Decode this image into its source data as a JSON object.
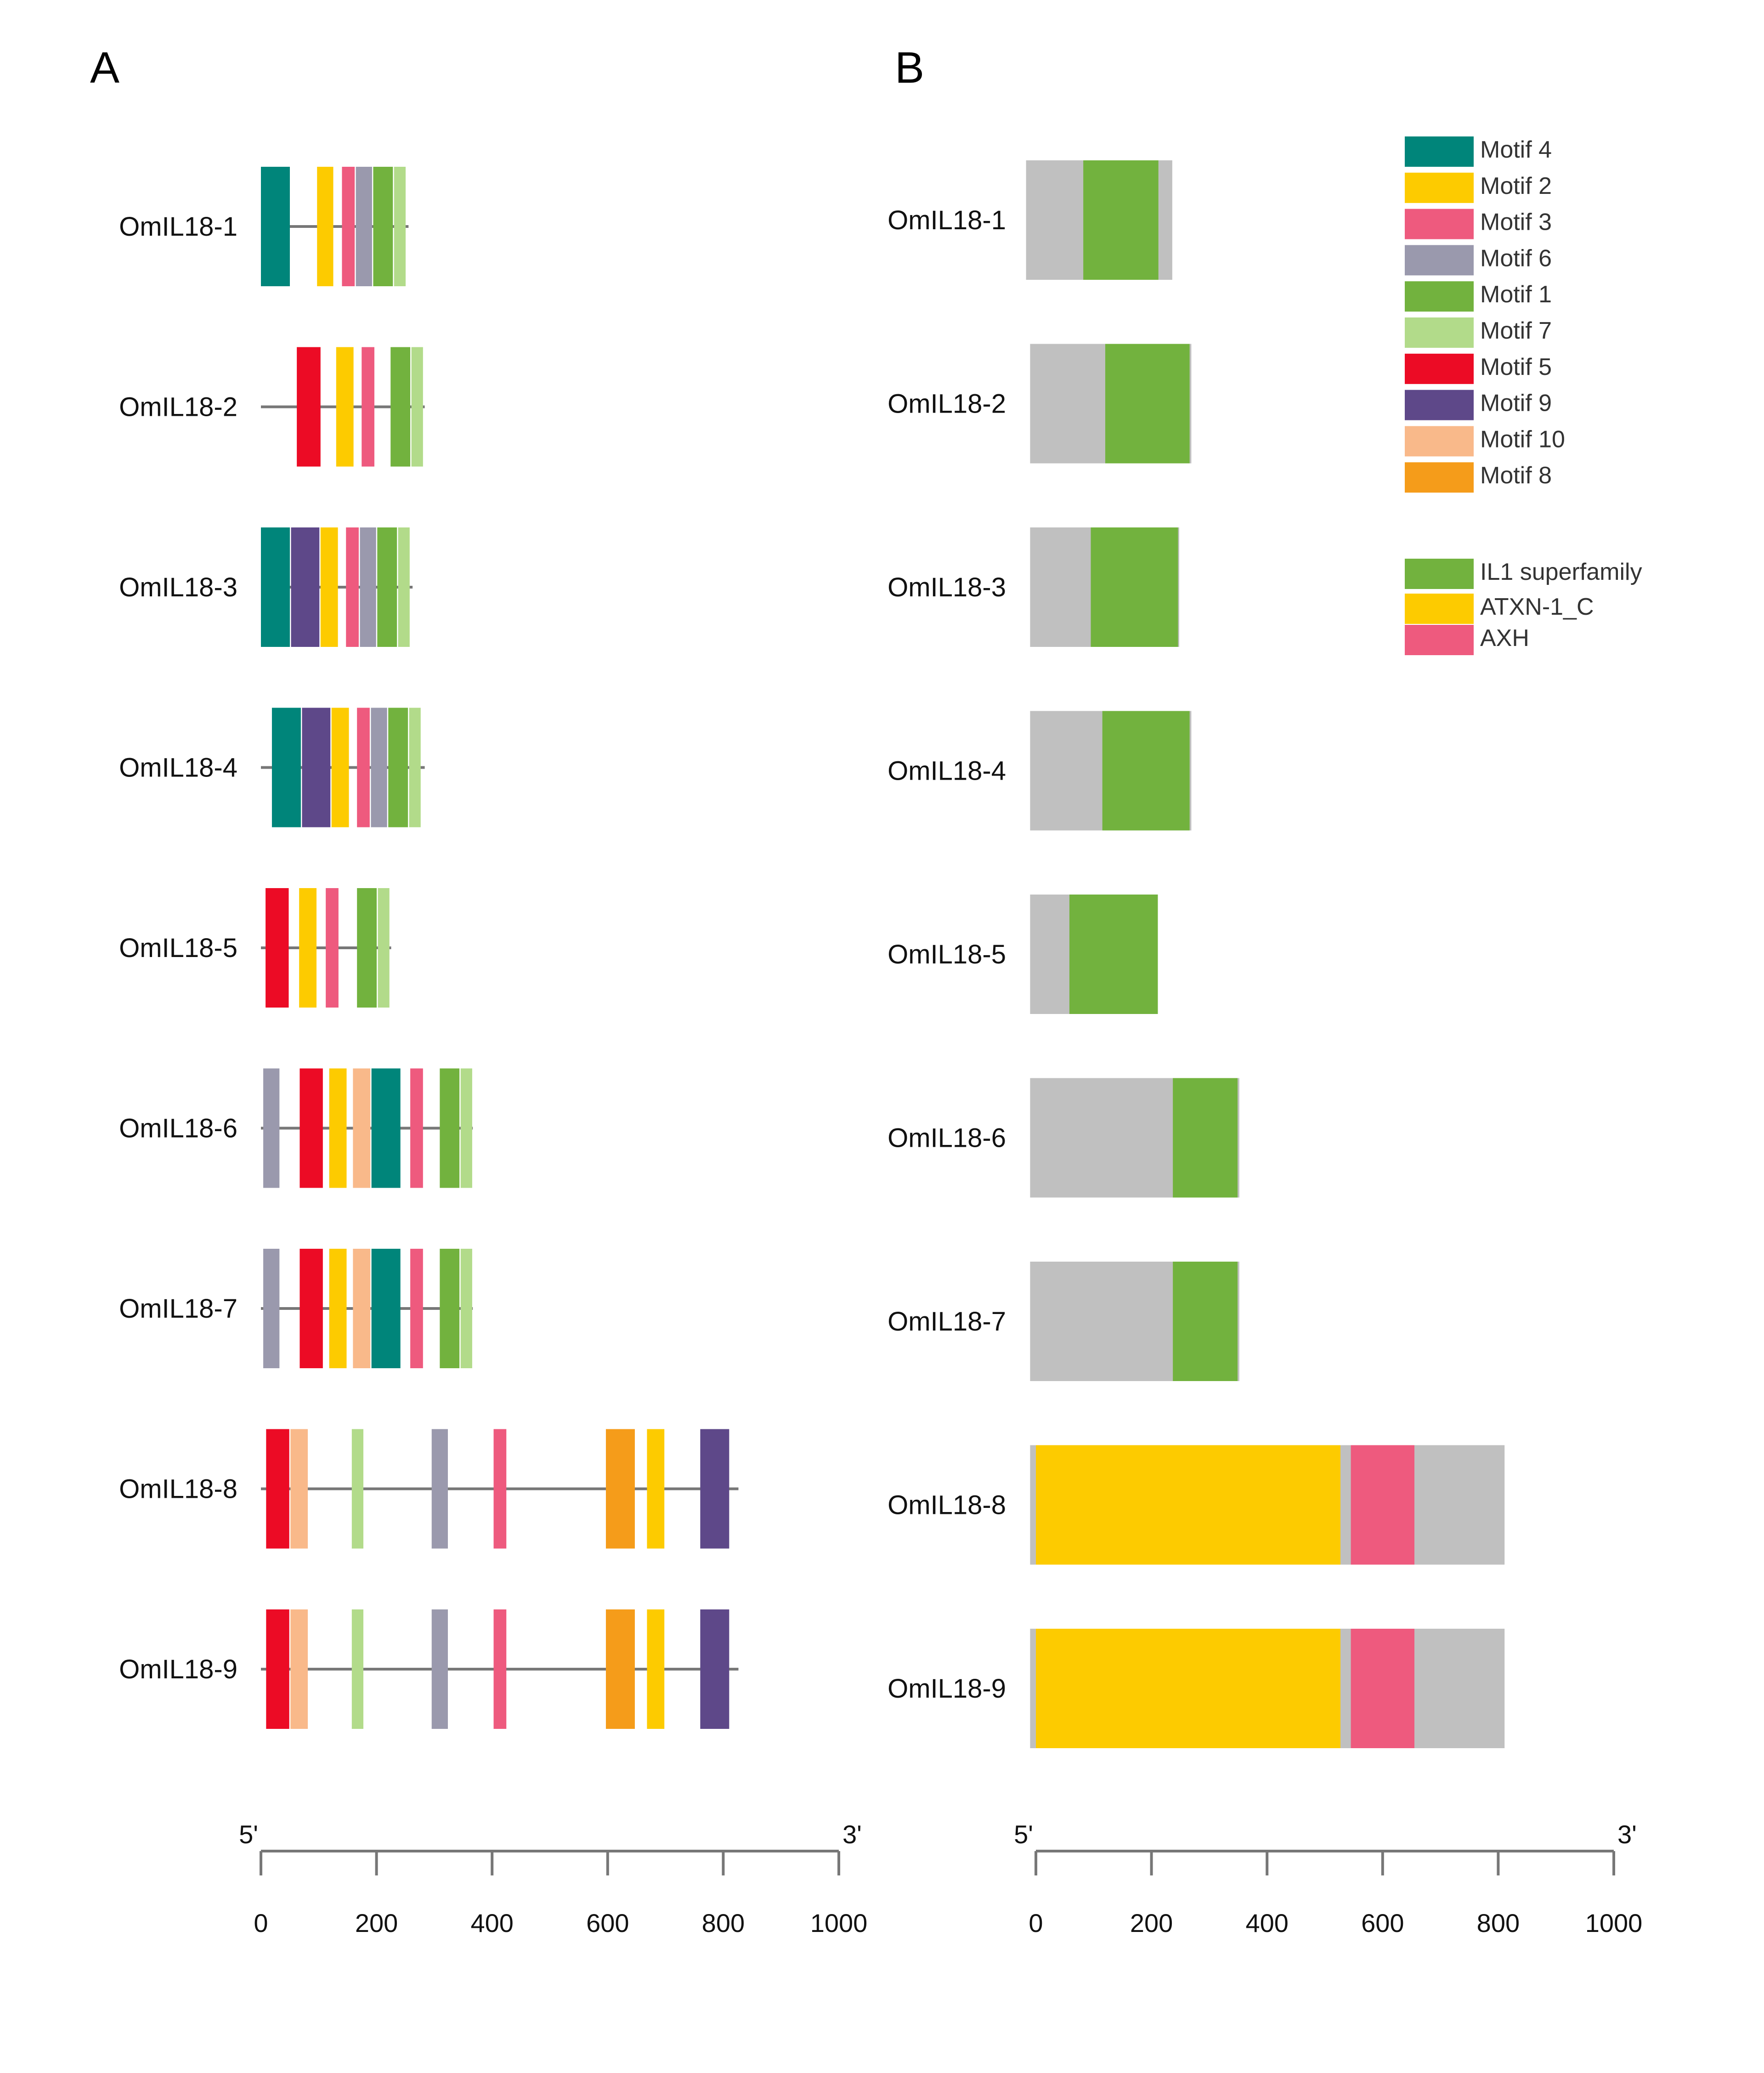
{
  "panels": {
    "a_label": "A",
    "b_label": "B"
  },
  "colors": {
    "motif_4": "#00857A",
    "motif_2": "#FDCB00",
    "motif_3": "#EE5A7E",
    "motif_6": "#9A99AD",
    "motif_1": "#72B23E",
    "motif_7": "#B2DB8A",
    "motif_5": "#EC0B25",
    "motif_9": "#5E4889",
    "motif_10": "#F9B98A",
    "motif_8": "#F59C1A",
    "il1": "#72B23E",
    "atxn": "#FDCB00",
    "axh": "#EE5A7E",
    "background": "#C0C0C0",
    "line": "#777777"
  },
  "legend": {
    "motifs": [
      {
        "key": "motif_4",
        "label": "Motif 4"
      },
      {
        "key": "motif_2",
        "label": "Motif 2"
      },
      {
        "key": "motif_3",
        "label": "Motif 3"
      },
      {
        "key": "motif_6",
        "label": "Motif 6"
      },
      {
        "key": "motif_1",
        "label": "Motif 1"
      },
      {
        "key": "motif_7",
        "label": "Motif 7"
      },
      {
        "key": "motif_5",
        "label": "Motif 5"
      },
      {
        "key": "motif_9",
        "label": "Motif 9"
      },
      {
        "key": "motif_10",
        "label": "Motif 10"
      },
      {
        "key": "motif_8",
        "label": "Motif 8"
      }
    ],
    "domains": [
      {
        "key": "il1",
        "label": "IL1 superfamily"
      },
      {
        "key": "atxn",
        "label": "ATXN-1_C"
      },
      {
        "key": "axh",
        "label": "AXH"
      }
    ]
  },
  "axes": {
    "a": {
      "five_prime": "5'",
      "three_prime": "3'",
      "ticks": [
        0,
        200,
        400,
        600,
        800,
        1000
      ]
    },
    "b": {
      "five_prime": "5'",
      "three_prime": "3'",
      "ticks": [
        0,
        200,
        400,
        600,
        800,
        1000
      ]
    }
  },
  "chart_data": [
    {
      "type": "bar",
      "title": "A",
      "xlabel": "",
      "xlim": [
        0,
        1000
      ],
      "genes": [
        {
          "name": "OmIL18-1",
          "length": 255,
          "motifs": [
            {
              "m": "motif_4",
              "start": 0,
              "end": 50
            },
            {
              "m": "motif_2",
              "start": 97,
              "end": 125
            },
            {
              "m": "motif_3",
              "start": 140,
              "end": 162
            },
            {
              "m": "motif_6",
              "start": 164,
              "end": 192
            },
            {
              "m": "motif_1",
              "start": 194,
              "end": 228
            },
            {
              "m": "motif_7",
              "start": 230,
              "end": 250
            }
          ]
        },
        {
          "name": "OmIL18-2",
          "length": 283,
          "motifs": [
            {
              "m": "motif_5",
              "start": 62,
              "end": 103
            },
            {
              "m": "motif_2",
              "start": 130,
              "end": 160
            },
            {
              "m": "motif_3",
              "start": 174,
              "end": 196
            },
            {
              "m": "motif_1",
              "start": 224,
              "end": 258
            },
            {
              "m": "motif_7",
              "start": 260,
              "end": 280
            }
          ]
        },
        {
          "name": "OmIL18-3",
          "length": 262,
          "motifs": [
            {
              "m": "motif_4",
              "start": 0,
              "end": 50
            },
            {
              "m": "motif_9",
              "start": 52,
              "end": 101
            },
            {
              "m": "motif_2",
              "start": 103,
              "end": 133
            },
            {
              "m": "motif_3",
              "start": 147,
              "end": 169
            },
            {
              "m": "motif_6",
              "start": 171,
              "end": 199
            },
            {
              "m": "motif_1",
              "start": 201,
              "end": 235
            },
            {
              "m": "motif_7",
              "start": 237,
              "end": 257
            }
          ]
        },
        {
          "name": "OmIL18-4",
          "length": 283,
          "motifs": [
            {
              "m": "motif_4",
              "start": 19,
              "end": 69
            },
            {
              "m": "motif_9",
              "start": 71,
              "end": 120
            },
            {
              "m": "motif_2",
              "start": 122,
              "end": 152
            },
            {
              "m": "motif_3",
              "start": 166,
              "end": 188
            },
            {
              "m": "motif_6",
              "start": 190,
              "end": 218
            },
            {
              "m": "motif_1",
              "start": 220,
              "end": 254
            },
            {
              "m": "motif_7",
              "start": 256,
              "end": 276
            }
          ]
        },
        {
          "name": "OmIL18-5",
          "length": 225,
          "motifs": [
            {
              "m": "motif_5",
              "start": 8,
              "end": 48
            },
            {
              "m": "motif_2",
              "start": 66,
              "end": 96
            },
            {
              "m": "motif_3",
              "start": 112,
              "end": 134
            },
            {
              "m": "motif_1",
              "start": 166,
              "end": 200
            },
            {
              "m": "motif_7",
              "start": 202,
              "end": 222
            }
          ]
        },
        {
          "name": "OmIL18-6",
          "length": 366,
          "motifs": [
            {
              "m": "motif_6",
              "start": 4,
              "end": 32
            },
            {
              "m": "motif_5",
              "start": 67,
              "end": 107
            },
            {
              "m": "motif_2",
              "start": 118,
              "end": 148
            },
            {
              "m": "motif_10",
              "start": 159,
              "end": 189
            },
            {
              "m": "motif_4",
              "start": 191,
              "end": 241
            },
            {
              "m": "motif_3",
              "start": 258,
              "end": 280
            },
            {
              "m": "motif_1",
              "start": 309,
              "end": 343
            },
            {
              "m": "motif_7",
              "start": 345,
              "end": 365
            }
          ]
        },
        {
          "name": "OmIL18-7",
          "length": 366,
          "motifs": [
            {
              "m": "motif_6",
              "start": 4,
              "end": 32
            },
            {
              "m": "motif_5",
              "start": 67,
              "end": 107
            },
            {
              "m": "motif_2",
              "start": 118,
              "end": 148
            },
            {
              "m": "motif_10",
              "start": 159,
              "end": 189
            },
            {
              "m": "motif_4",
              "start": 191,
              "end": 241
            },
            {
              "m": "motif_3",
              "start": 258,
              "end": 280
            },
            {
              "m": "motif_1",
              "start": 309,
              "end": 343
            },
            {
              "m": "motif_7",
              "start": 345,
              "end": 365
            }
          ]
        },
        {
          "name": "OmIL18-8",
          "length": 825,
          "motifs": [
            {
              "m": "motif_5",
              "start": 9,
              "end": 49
            },
            {
              "m": "motif_10",
              "start": 51,
              "end": 81
            },
            {
              "m": "motif_7",
              "start": 157,
              "end": 177
            },
            {
              "m": "motif_6",
              "start": 295,
              "end": 323
            },
            {
              "m": "motif_3",
              "start": 402,
              "end": 424
            },
            {
              "m": "motif_8",
              "start": 596,
              "end": 646
            },
            {
              "m": "motif_2",
              "start": 667,
              "end": 697
            },
            {
              "m": "motif_9",
              "start": 759,
              "end": 809
            }
          ]
        },
        {
          "name": "OmIL18-9",
          "length": 825,
          "motifs": [
            {
              "m": "motif_5",
              "start": 9,
              "end": 49
            },
            {
              "m": "motif_10",
              "start": 51,
              "end": 81
            },
            {
              "m": "motif_7",
              "start": 157,
              "end": 177
            },
            {
              "m": "motif_6",
              "start": 295,
              "end": 323
            },
            {
              "m": "motif_3",
              "start": 402,
              "end": 424
            },
            {
              "m": "motif_8",
              "start": 596,
              "end": 646
            },
            {
              "m": "motif_2",
              "start": 667,
              "end": 697
            },
            {
              "m": "motif_9",
              "start": 759,
              "end": 809
            }
          ]
        }
      ]
    },
    {
      "type": "bar",
      "title": "B",
      "xlabel": "",
      "xlim": [
        0,
        1000
      ],
      "genes": [
        {
          "name": "OmIL18-1",
          "start": -17,
          "length": 253,
          "domains": [
            {
              "d": "il1",
              "start": 82,
              "end": 212
            }
          ]
        },
        {
          "name": "OmIL18-2",
          "start": -10,
          "length": 279,
          "domains": [
            {
              "d": "il1",
              "start": 120,
              "end": 266
            }
          ]
        },
        {
          "name": "OmIL18-3",
          "start": -10,
          "length": 258,
          "domains": [
            {
              "d": "il1",
              "start": 95,
              "end": 246
            }
          ]
        },
        {
          "name": "OmIL18-4",
          "start": -10,
          "length": 279,
          "domains": [
            {
              "d": "il1",
              "start": 115,
              "end": 266
            }
          ]
        },
        {
          "name": "OmIL18-5",
          "start": -10,
          "length": 221,
          "domains": [
            {
              "d": "il1",
              "start": 58,
              "end": 211
            }
          ]
        },
        {
          "name": "OmIL18-6",
          "start": -10,
          "length": 362,
          "domains": [
            {
              "d": "il1",
              "start": 237,
              "end": 349
            }
          ]
        },
        {
          "name": "OmIL18-7",
          "start": -10,
          "length": 362,
          "domains": [
            {
              "d": "il1",
              "start": 237,
              "end": 349
            }
          ]
        },
        {
          "name": "OmIL18-8",
          "start": -10,
          "length": 821,
          "domains": [
            {
              "d": "atxn",
              "start": 0,
              "end": 527
            },
            {
              "d": "axh",
              "start": 545,
              "end": 655
            }
          ]
        },
        {
          "name": "OmIL18-9",
          "start": -10,
          "length": 821,
          "domains": [
            {
              "d": "atxn",
              "start": 0,
              "end": 527
            },
            {
              "d": "axh",
              "start": 545,
              "end": 655
            }
          ]
        }
      ]
    }
  ]
}
